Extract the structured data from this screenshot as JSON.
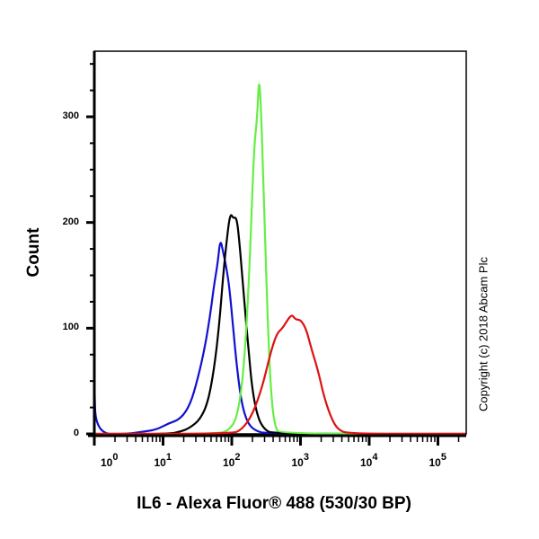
{
  "chart_data": {
    "type": "line",
    "title": "",
    "xlabel": "IL6 - Alexa Fluor® 488 (530/30 BP)",
    "ylabel": "Count",
    "xscale": "log",
    "xlim": [
      1,
      250000
    ],
    "ylim": [
      0,
      360
    ],
    "grid": false,
    "legend": null,
    "x_tick_labels": [
      "10^0",
      "10^1",
      "10^2",
      "10^3",
      "10^4",
      "10^5"
    ],
    "y_tick_labels": [
      "0",
      "100",
      "200",
      "300"
    ],
    "annotation": "Copyright (c) 2018 Abcam Plc",
    "series": [
      {
        "name": "blue",
        "color": "#1010d0",
        "points": [
          [
            1,
            50
          ],
          [
            1.05,
            0
          ],
          [
            3,
            0
          ],
          [
            5,
            2
          ],
          [
            8,
            4
          ],
          [
            12,
            10
          ],
          [
            18,
            14
          ],
          [
            25,
            28
          ],
          [
            32,
            52
          ],
          [
            40,
            80
          ],
          [
            48,
            110
          ],
          [
            55,
            140
          ],
          [
            62,
            160
          ],
          [
            68,
            185
          ],
          [
            75,
            172
          ],
          [
            82,
            160
          ],
          [
            92,
            140
          ],
          [
            105,
            100
          ],
          [
            120,
            60
          ],
          [
            140,
            28
          ],
          [
            170,
            10
          ],
          [
            220,
            3
          ],
          [
            320,
            0
          ],
          [
            250000,
            0
          ]
        ]
      },
      {
        "name": "black",
        "color": "#000000",
        "points": [
          [
            1,
            0
          ],
          [
            12,
            0
          ],
          [
            18,
            2
          ],
          [
            25,
            6
          ],
          [
            35,
            14
          ],
          [
            45,
            30
          ],
          [
            55,
            60
          ],
          [
            65,
            100
          ],
          [
            75,
            150
          ],
          [
            85,
            185
          ],
          [
            95,
            209
          ],
          [
            105,
            204
          ],
          [
            118,
            205
          ],
          [
            130,
            180
          ],
          [
            150,
            130
          ],
          [
            175,
            80
          ],
          [
            200,
            40
          ],
          [
            240,
            15
          ],
          [
            300,
            4
          ],
          [
            400,
            0
          ],
          [
            250000,
            0
          ]
        ]
      },
      {
        "name": "green",
        "color": "#66ee44",
        "points": [
          [
            1,
            0
          ],
          [
            60,
            0
          ],
          [
            90,
            3
          ],
          [
            120,
            15
          ],
          [
            150,
            60
          ],
          [
            180,
            150
          ],
          [
            210,
            270
          ],
          [
            235,
            300
          ],
          [
            250,
            341
          ],
          [
            270,
            300
          ],
          [
            300,
            200
          ],
          [
            340,
            90
          ],
          [
            380,
            30
          ],
          [
            430,
            6
          ],
          [
            500,
            0
          ],
          [
            250000,
            0
          ]
        ]
      },
      {
        "name": "red",
        "color": "#dd1111",
        "points": [
          [
            1,
            0
          ],
          [
            100,
            0
          ],
          [
            140,
            4
          ],
          [
            200,
            18
          ],
          [
            280,
            45
          ],
          [
            360,
            75
          ],
          [
            450,
            95
          ],
          [
            550,
            100
          ],
          [
            650,
            108
          ],
          [
            750,
            113
          ],
          [
            850,
            108
          ],
          [
            1000,
            108
          ],
          [
            1200,
            100
          ],
          [
            1450,
            80
          ],
          [
            1800,
            60
          ],
          [
            2200,
            35
          ],
          [
            2800,
            15
          ],
          [
            3500,
            4
          ],
          [
            5000,
            0
          ],
          [
            250000,
            0
          ]
        ]
      }
    ]
  }
}
